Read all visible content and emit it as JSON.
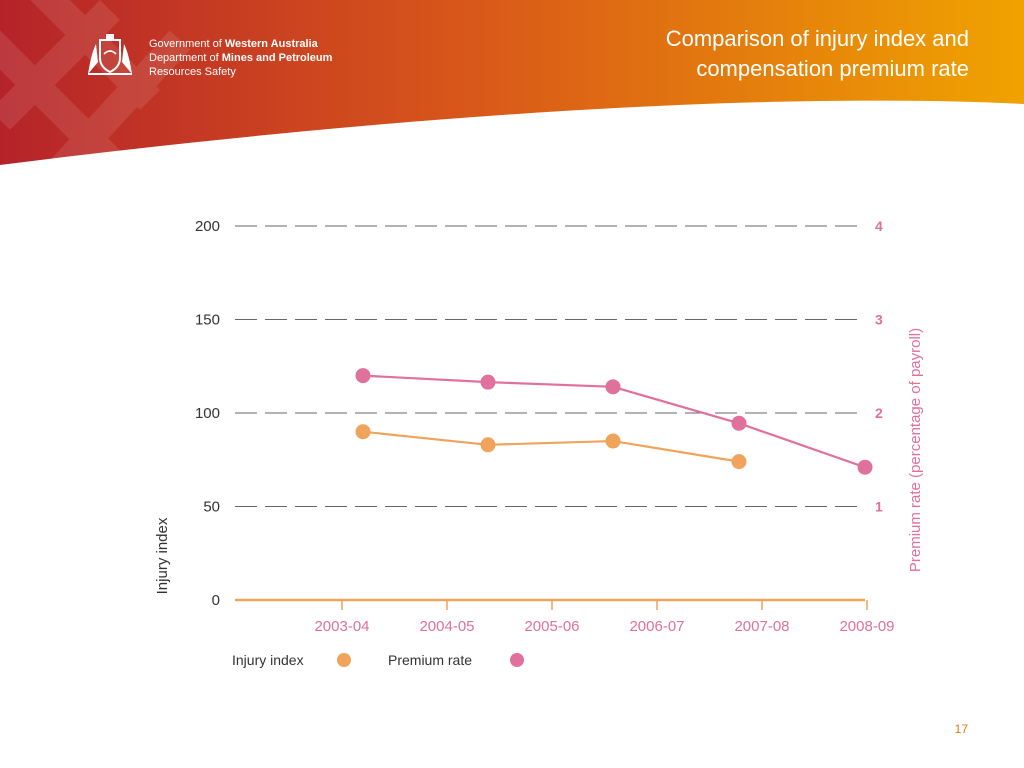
{
  "header": {
    "org_line1_prefix": "Government of ",
    "org_line1_bold": "Western Australia",
    "org_line2_prefix": "Department of ",
    "org_line2_bold": "Mines and Petroleum",
    "org_line3": "Resources Safety",
    "title_line1": "Comparison of injury index and",
    "title_line2": "compensation premium rate"
  },
  "page_number": "17",
  "colors": {
    "banner_start": "#b5232a",
    "banner_end": "#f0a300",
    "injury": "#f0a35a",
    "premium": "#e0709c",
    "axis": "#f0a35a",
    "grid": "#666666",
    "page_number": "#e07a10"
  },
  "chart_data": {
    "type": "line",
    "categories": [
      "2003-04",
      "2004-05",
      "2005-06",
      "2006-07",
      "2007-08",
      "2008-09"
    ],
    "xlabel": "",
    "ylabel": "Injury index",
    "y2label": "Premium rate (percentage of payroll)",
    "ylim": [
      0,
      200
    ],
    "y2lim": [
      0,
      4
    ],
    "yticks": [
      "0",
      "50",
      "100",
      "150",
      "200"
    ],
    "y2ticks": [
      "1",
      "2",
      "3",
      "4"
    ],
    "grid": "dashed horizontal",
    "legend": "bottom-left",
    "series": [
      {
        "name": "Injury index",
        "axis": "left",
        "points": [
          {
            "x": "2003-04",
            "y": 90
          },
          {
            "x": "2004-05",
            "y": 83
          },
          {
            "x": "2006-07",
            "y": 85
          },
          {
            "x": "2007-08",
            "y": 74
          }
        ]
      },
      {
        "name": "Premium rate",
        "axis": "right",
        "points": [
          {
            "x": "2003-04",
            "y": 2.4
          },
          {
            "x": "2004-05",
            "y": 2.33
          },
          {
            "x": "2006-07",
            "y": 2.28
          },
          {
            "x": "2007-08",
            "y": 1.89
          },
          {
            "x": "2008-09",
            "y": 1.42
          }
        ]
      }
    ]
  }
}
